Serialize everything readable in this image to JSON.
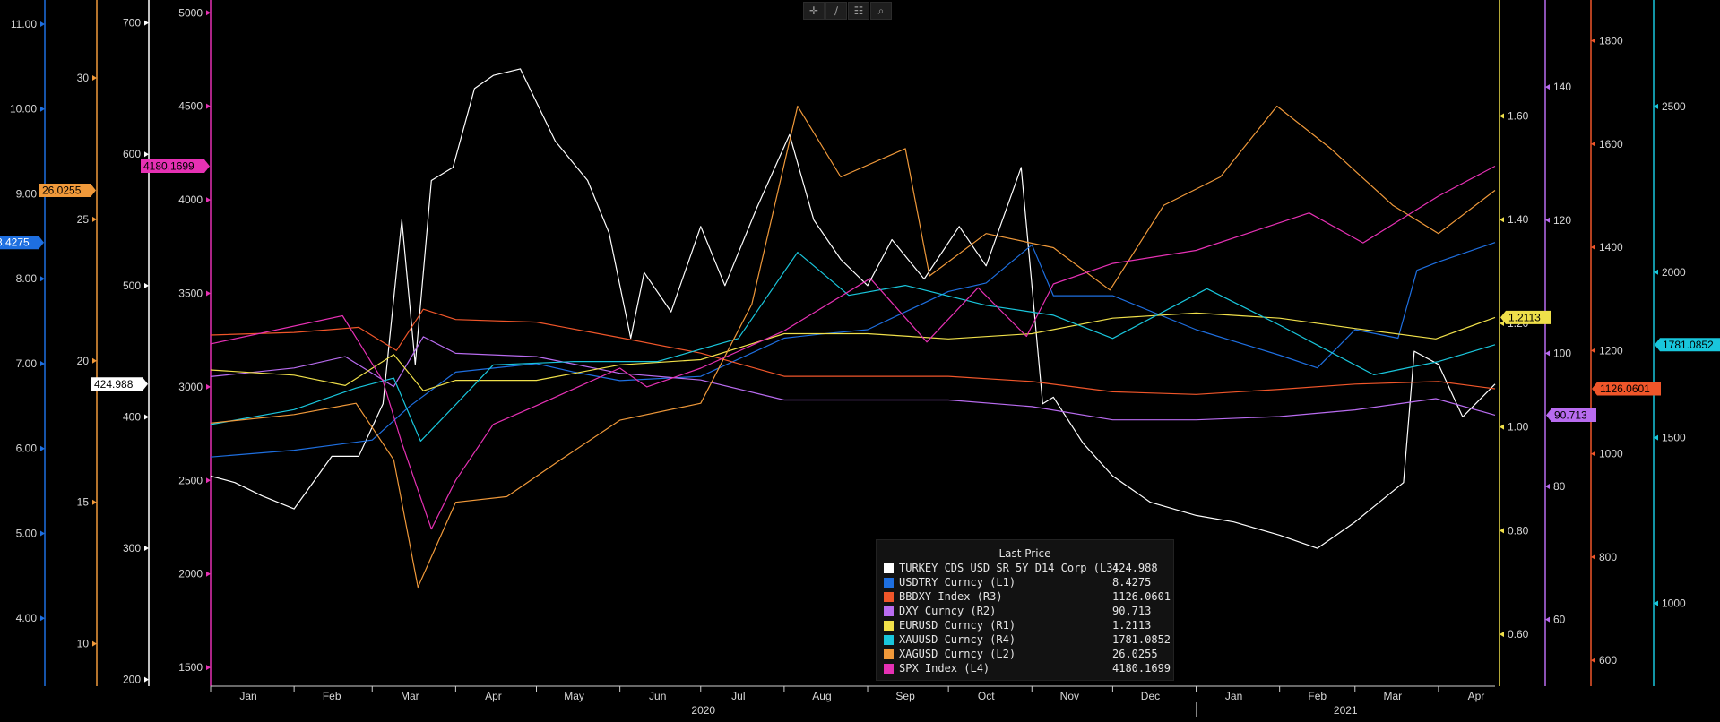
{
  "toolbar": [
    {
      "name": "crosshair-tool-button",
      "icon": "crosshair-icon",
      "glyph": "✛"
    },
    {
      "name": "draw-tool-button",
      "icon": "pencil-icon",
      "glyph": "∕"
    },
    {
      "name": "table-tool-button",
      "icon": "table-icon",
      "glyph": "☷"
    },
    {
      "name": "zoom-tool-button",
      "icon": "magnifier-icon",
      "glyph": "⌕"
    }
  ],
  "legend": {
    "title": "Last Price",
    "entries": [
      {
        "name": "TURKEY CDS USD SR 5Y D14 Corp  (L3)",
        "value": "424.988",
        "color": "#ffffff"
      },
      {
        "name": "USDTRY Curncy  (L1)",
        "value": "8.4275",
        "color": "#1e6fe0"
      },
      {
        "name": "BBDXY Index  (R3)",
        "value": "1126.0601",
        "color": "#f0562a"
      },
      {
        "name": "DXY Curncy  (R2)",
        "value": "90.713",
        "color": "#b96cf0"
      },
      {
        "name": "EURUSD Curncy  (R1)",
        "value": "1.2113",
        "color": "#f0e04a"
      },
      {
        "name": "XAUUSD Curncy  (R4)",
        "value": "1781.0852",
        "color": "#19c6dc"
      },
      {
        "name": "XAGUSD Curncy  (L2)",
        "value": "26.0255",
        "color": "#f0993a"
      },
      {
        "name": "SPX Index  (L4)",
        "value": "4180.1699",
        "color": "#e631b4"
      }
    ]
  },
  "chart_data": {
    "type": "line",
    "x_range": [
      "2020-01-01",
      "2021-04-22"
    ],
    "x_month_labels": [
      "Jan",
      "Feb",
      "Mar",
      "Apr",
      "May",
      "Jun",
      "Jul",
      "Aug",
      "Sep",
      "Oct",
      "Nov",
      "Dec",
      "Jan",
      "Feb",
      "Mar",
      "Apr"
    ],
    "x_year_labels": [
      "2020",
      "2021"
    ],
    "axes": {
      "L1": {
        "color": "#1e6fe0",
        "range": [
          3.2,
          11.2
        ],
        "ticks": [
          4,
          5,
          6,
          7,
          8,
          9,
          10,
          11
        ],
        "tick_labels": [
          "4.00",
          "5.00",
          "6.00",
          "7.00",
          "8.00",
          "9.00",
          "10.00",
          "11.00"
        ]
      },
      "L2": {
        "color": "#f0993a",
        "range": [
          8.5,
          32.5
        ],
        "ticks": [
          10,
          15,
          20,
          25,
          30
        ],
        "tick_labels": [
          "10",
          "15",
          "20",
          "25",
          "30"
        ]
      },
      "L3": {
        "color": "#ffffff",
        "range": [
          195,
          712
        ],
        "ticks": [
          200,
          300,
          400,
          500,
          600,
          700
        ],
        "tick_labels": [
          "200",
          "300",
          "400",
          "500",
          "600",
          "700"
        ]
      },
      "L4": {
        "color": "#e631b4",
        "range": [
          1400,
          5030
        ],
        "ticks": [
          1500,
          2000,
          2500,
          3000,
          3500,
          4000,
          4500,
          5000
        ],
        "tick_labels": [
          "1500",
          "2000",
          "2500",
          "3000",
          "3500",
          "4000",
          "4500",
          "5000"
        ]
      },
      "R1": {
        "color": "#f0e04a",
        "range": [
          0.5,
          1.81
        ],
        "ticks": [
          0.6,
          0.8,
          1.0,
          1.2,
          1.4,
          1.6
        ],
        "tick_labels": [
          "0.60",
          "0.80",
          "1.00",
          "1.20",
          "1.40",
          "1.60"
        ]
      },
      "R2": {
        "color": "#b96cf0",
        "range": [
          50,
          152
        ],
        "ticks": [
          60,
          80,
          100,
          120,
          140
        ],
        "tick_labels": [
          "60",
          "80",
          "100",
          "120",
          "140"
        ]
      },
      "R3": {
        "color": "#f0562a",
        "range": [
          550,
          1865
        ],
        "ticks": [
          600,
          800,
          1000,
          1200,
          1400,
          1600,
          1800
        ],
        "tick_labels": [
          "600",
          "800",
          "1000",
          "1200",
          "1400",
          "1600",
          "1800"
        ]
      },
      "R4": {
        "color": "#19c6dc",
        "range": [
          750,
          2800
        ],
        "ticks": [
          1000,
          1500,
          2000,
          2500
        ],
        "tick_labels": [
          "1000",
          "1500",
          "2000",
          "2500"
        ]
      }
    },
    "series": [
      {
        "name": "TURKEY CDS USD SR 5Y D14 Corp  (L3)",
        "axis": "L3",
        "color": "#ffffff",
        "last": "424.988",
        "x": [
          "2020-01-01",
          "2020-01-10",
          "2020-01-20",
          "2020-02-01",
          "2020-02-15",
          "2020-02-25",
          "2020-03-05",
          "2020-03-12",
          "2020-03-17",
          "2020-03-23",
          "2020-03-31",
          "2020-04-08",
          "2020-04-15",
          "2020-04-25",
          "2020-05-08",
          "2020-05-20",
          "2020-05-28",
          "2020-06-05",
          "2020-06-10",
          "2020-06-20",
          "2020-07-01",
          "2020-07-10",
          "2020-07-22",
          "2020-08-03",
          "2020-08-12",
          "2020-08-22",
          "2020-09-01",
          "2020-09-10",
          "2020-09-22",
          "2020-10-05",
          "2020-10-15",
          "2020-10-28",
          "2020-11-05",
          "2020-11-09",
          "2020-11-20",
          "2020-12-01",
          "2020-12-15",
          "2021-01-01",
          "2021-01-15",
          "2021-02-01",
          "2021-02-15",
          "2021-03-01",
          "2021-03-10",
          "2021-03-19",
          "2021-03-23",
          "2021-04-01",
          "2021-04-10",
          "2021-04-22"
        ],
        "y": [
          355,
          350,
          340,
          330,
          370,
          370,
          410,
          550,
          440,
          580,
          590,
          650,
          660,
          665,
          610,
          580,
          540,
          460,
          510,
          480,
          545,
          500,
          560,
          615,
          550,
          520,
          500,
          535,
          505,
          545,
          515,
          590,
          410,
          415,
          380,
          355,
          335,
          325,
          320,
          310,
          300,
          320,
          335,
          350,
          450,
          440,
          400,
          425
        ]
      },
      {
        "name": "USDTRY Curncy  (L1)",
        "axis": "L1",
        "color": "#1e6fe0",
        "last": "8.4275",
        "x": [
          "2020-01-01",
          "2020-02-01",
          "2020-03-01",
          "2020-03-15",
          "2020-04-01",
          "2020-05-01",
          "2020-05-15",
          "2020-06-01",
          "2020-07-01",
          "2020-08-01",
          "2020-08-15",
          "2020-09-01",
          "2020-10-01",
          "2020-10-15",
          "2020-11-01",
          "2020-11-09",
          "2020-12-01",
          "2021-01-01",
          "2021-02-01",
          "2021-02-15",
          "2021-03-01",
          "2021-03-17",
          "2021-03-24",
          "2021-04-01",
          "2021-04-22"
        ],
        "y": [
          5.9,
          5.98,
          6.1,
          6.5,
          6.9,
          7.0,
          6.9,
          6.8,
          6.85,
          7.3,
          7.35,
          7.4,
          7.85,
          7.95,
          8.4,
          7.8,
          7.8,
          7.4,
          7.1,
          6.95,
          7.4,
          7.3,
          8.1,
          8.2,
          8.4275
        ]
      },
      {
        "name": "BBDXY Index  (R3)",
        "axis": "R3",
        "color": "#f0562a",
        "last": "1126.0601",
        "x": [
          "2020-01-01",
          "2020-02-01",
          "2020-02-25",
          "2020-03-10",
          "2020-03-20",
          "2020-04-01",
          "2020-05-01",
          "2020-06-01",
          "2020-07-01",
          "2020-08-01",
          "2020-09-01",
          "2020-10-01",
          "2020-11-01",
          "2020-12-01",
          "2021-01-01",
          "2021-02-01",
          "2021-03-01",
          "2021-04-01",
          "2021-04-22"
        ],
        "y": [
          1230,
          1235,
          1245,
          1200,
          1280,
          1260,
          1255,
          1225,
          1195,
          1150,
          1150,
          1150,
          1140,
          1120,
          1115,
          1125,
          1135,
          1140,
          1126
        ]
      },
      {
        "name": "DXY Curncy  (R2)",
        "axis": "R2",
        "color": "#b96cf0",
        "last": "90.713",
        "x": [
          "2020-01-01",
          "2020-02-01",
          "2020-02-20",
          "2020-03-09",
          "2020-03-20",
          "2020-04-01",
          "2020-05-01",
          "2020-06-01",
          "2020-07-01",
          "2020-08-01",
          "2020-09-01",
          "2020-10-01",
          "2020-11-01",
          "2020-12-01",
          "2021-01-01",
          "2021-02-01",
          "2021-03-01",
          "2021-03-31",
          "2021-04-22"
        ],
        "y": [
          96.5,
          97.8,
          99.5,
          95.0,
          102.5,
          100.0,
          99.5,
          97.0,
          96.0,
          93.0,
          93.0,
          93.0,
          92.0,
          90.0,
          90.0,
          90.5,
          91.5,
          93.2,
          90.713
        ]
      },
      {
        "name": "EURUSD Curncy  (R1)",
        "axis": "R1",
        "color": "#f0e04a",
        "last": "1.2113",
        "x": [
          "2020-01-01",
          "2020-02-01",
          "2020-02-20",
          "2020-03-09",
          "2020-03-20",
          "2020-04-01",
          "2020-05-01",
          "2020-06-01",
          "2020-07-01",
          "2020-08-01",
          "2020-09-01",
          "2020-10-01",
          "2020-11-01",
          "2020-12-01",
          "2021-01-01",
          "2021-02-01",
          "2021-03-01",
          "2021-03-31",
          "2021-04-22"
        ],
        "y": [
          1.11,
          1.1,
          1.08,
          1.14,
          1.07,
          1.09,
          1.09,
          1.12,
          1.13,
          1.18,
          1.18,
          1.17,
          1.18,
          1.21,
          1.22,
          1.21,
          1.19,
          1.17,
          1.2113
        ]
      },
      {
        "name": "XAUUSD Curncy  (R4)",
        "axis": "R4",
        "color": "#19c6dc",
        "last": "1781.0852",
        "x": [
          "2020-01-01",
          "2020-02-01",
          "2020-02-24",
          "2020-03-09",
          "2020-03-19",
          "2020-04-01",
          "2020-04-15",
          "2020-05-15",
          "2020-06-15",
          "2020-07-15",
          "2020-08-06",
          "2020-08-25",
          "2020-09-15",
          "2020-10-15",
          "2020-11-09",
          "2020-12-01",
          "2021-01-05",
          "2021-02-01",
          "2021-02-15",
          "2021-03-08",
          "2021-04-01",
          "2021-04-22"
        ],
        "y": [
          1540,
          1585,
          1650,
          1680,
          1490,
          1600,
          1720,
          1730,
          1730,
          1800,
          2060,
          1930,
          1960,
          1900,
          1870,
          1800,
          1950,
          1840,
          1780,
          1690,
          1730,
          1781
        ]
      },
      {
        "name": "XAGUSD Curncy  (L2)",
        "axis": "L2",
        "color": "#f0993a",
        "last": "26.0255",
        "x": [
          "2020-01-01",
          "2020-02-01",
          "2020-02-24",
          "2020-03-09",
          "2020-03-18",
          "2020-04-01",
          "2020-04-20",
          "2020-05-10",
          "2020-06-01",
          "2020-07-01",
          "2020-07-20",
          "2020-08-06",
          "2020-08-22",
          "2020-09-15",
          "2020-09-24",
          "2020-10-15",
          "2020-11-09",
          "2020-11-30",
          "2020-12-20",
          "2021-01-10",
          "2021-01-31",
          "2021-02-20",
          "2021-03-15",
          "2021-04-01",
          "2021-04-22"
        ],
        "y": [
          17.8,
          18.1,
          18.5,
          16.5,
          12.0,
          15.0,
          15.2,
          16.5,
          17.9,
          18.5,
          22.0,
          29.0,
          26.5,
          27.5,
          23.0,
          24.5,
          24.0,
          22.5,
          25.5,
          26.5,
          29.0,
          27.5,
          25.5,
          24.5,
          26.0255
        ]
      },
      {
        "name": "SPX Index  (L4)",
        "axis": "L4",
        "color": "#e631b4",
        "last": "4180.1699",
        "x": [
          "2020-01-01",
          "2020-02-19",
          "2020-03-05",
          "2020-03-12",
          "2020-03-23",
          "2020-04-01",
          "2020-04-15",
          "2020-05-01",
          "2020-06-01",
          "2020-06-11",
          "2020-07-01",
          "2020-08-01",
          "2020-09-02",
          "2020-09-23",
          "2020-10-12",
          "2020-10-30",
          "2020-11-09",
          "2020-12-01",
          "2021-01-01",
          "2021-02-12",
          "2021-03-04",
          "2021-04-01",
          "2021-04-22"
        ],
        "y": [
          3230,
          3380,
          3030,
          2700,
          2240,
          2500,
          2800,
          2900,
          3100,
          3000,
          3100,
          3300,
          3580,
          3240,
          3530,
          3270,
          3550,
          3660,
          3730,
          3930,
          3770,
          4020,
          4180.1699
        ]
      }
    ],
    "value_tags": [
      {
        "axis": "L1",
        "label": "8.4275",
        "color": "#1e6fe0",
        "text_color": "#ffffff"
      },
      {
        "axis": "L2",
        "label": "26.0255",
        "color": "#f0993a",
        "text_color": "#000000"
      },
      {
        "axis": "L3",
        "label": "424.988",
        "color": "#ffffff",
        "text_color": "#000000"
      },
      {
        "axis": "L4",
        "label": "4180.1699",
        "color": "#e631b4",
        "text_color": "#000000"
      },
      {
        "axis": "R1",
        "label": "1.2113",
        "color": "#f0e04a",
        "text_color": "#000000"
      },
      {
        "axis": "R2",
        "label": "90.713",
        "color": "#b96cf0",
        "text_color": "#000000"
      },
      {
        "axis": "R3",
        "label": "1126.0601",
        "color": "#f0562a",
        "text_color": "#000000"
      },
      {
        "axis": "R4",
        "label": "1781.0852",
        "color": "#19c6dc",
        "text_color": "#000000"
      }
    ],
    "grid": false,
    "legend_position": "bottom-center"
  }
}
